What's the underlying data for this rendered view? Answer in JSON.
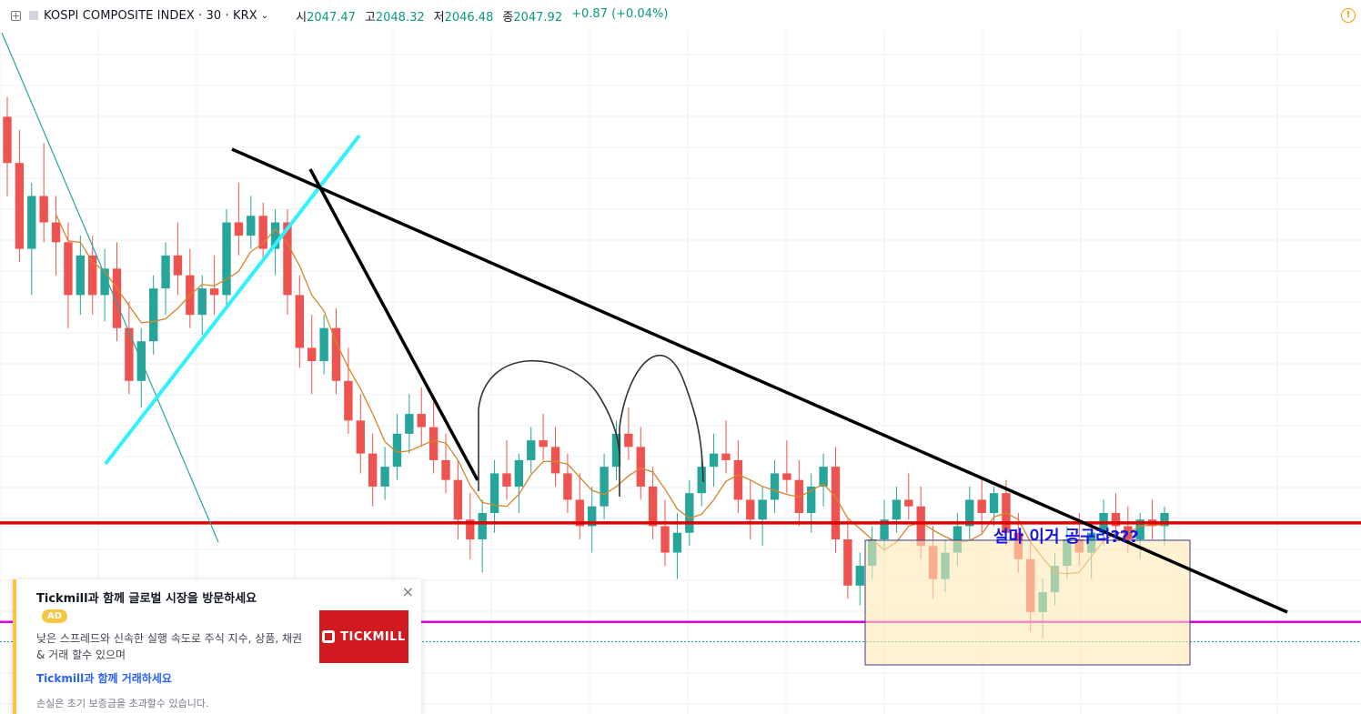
{
  "header": {
    "symbol": "KOSPI COMPOSITE INDEX · 30 · KRX",
    "chevron": "⌄",
    "ohlc": [
      {
        "key": "시",
        "value": "2047.47"
      },
      {
        "key": "고",
        "value": "2048.32"
      },
      {
        "key": "저",
        "value": "2046.48"
      },
      {
        "key": "종",
        "value": "2047.92"
      }
    ],
    "change": "+0.87 (+0.04%)",
    "warning_icon": "warning-icon"
  },
  "annotation": {
    "text": "설마 이거 공구리???"
  },
  "ad": {
    "title": "Tickmill과 함께 글로벌 시장을 방문하세요",
    "badge": "AD",
    "body": "낮은 스프레드와 신속한 실행 속도로 주식 지수, 상품, 채권 & 거래 할수 있으며",
    "link": "Tickmill과 함께 거래하세요",
    "disclaimer": "손실은 초기 보증금을 초과할수 있습니다.",
    "logo_text": "TICKMILL",
    "close": "×",
    "accent_color": "#f7c742",
    "logo_color": "#d11a1f"
  },
  "chart_data": {
    "type": "candlestick",
    "up_color": "#26a69a",
    "down_color": "#ef5350",
    "ma_color": "#d4862b",
    "grid": true,
    "y_range": [
      1995,
      2095
    ],
    "candles": [
      [
        2082,
        2085,
        2070,
        2075
      ],
      [
        2075,
        2080,
        2060,
        2062
      ],
      [
        2062,
        2072,
        2055,
        2070
      ],
      [
        2070,
        2078,
        2063,
        2066
      ],
      [
        2066,
        2070,
        2058,
        2063
      ],
      [
        2063,
        2066,
        2050,
        2055
      ],
      [
        2055,
        2064,
        2052,
        2061
      ],
      [
        2061,
        2064,
        2052,
        2055
      ],
      [
        2055,
        2062,
        2051,
        2059
      ],
      [
        2059,
        2063,
        2048,
        2050
      ],
      [
        2050,
        2054,
        2040,
        2042
      ],
      [
        2042,
        2050,
        2038,
        2048
      ],
      [
        2048,
        2058,
        2046,
        2056
      ],
      [
        2056,
        2063,
        2052,
        2061
      ],
      [
        2061,
        2066,
        2055,
        2058
      ],
      [
        2058,
        2062,
        2050,
        2052
      ],
      [
        2052,
        2058,
        2049,
        2056
      ],
      [
        2056,
        2061,
        2052,
        2055
      ],
      [
        2055,
        2068,
        2053,
        2066
      ],
      [
        2066,
        2072,
        2061,
        2064
      ],
      [
        2064,
        2070,
        2062,
        2067
      ],
      [
        2067,
        2069,
        2060,
        2062
      ],
      [
        2062,
        2068,
        2058,
        2066
      ],
      [
        2066,
        2068,
        2052,
        2055
      ],
      [
        2055,
        2058,
        2044,
        2047
      ],
      [
        2047,
        2052,
        2040,
        2045
      ],
      [
        2045,
        2052,
        2043,
        2050
      ],
      [
        2050,
        2053,
        2040,
        2042
      ],
      [
        2042,
        2047,
        2034,
        2036
      ],
      [
        2036,
        2040,
        2028,
        2031
      ],
      [
        2031,
        2034,
        2023,
        2026
      ],
      [
        2026,
        2032,
        2024,
        2029
      ],
      [
        2029,
        2037,
        2027,
        2034
      ],
      [
        2034,
        2040,
        2031,
        2037
      ],
      [
        2037,
        2041,
        2032,
        2035
      ],
      [
        2035,
        2039,
        2028,
        2030
      ],
      [
        2030,
        2034,
        2025,
        2027
      ],
      [
        2027,
        2030,
        2018,
        2021
      ],
      [
        2021,
        2025,
        2015,
        2018
      ],
      [
        2018,
        2024,
        2013,
        2022
      ],
      [
        2022,
        2030,
        2019,
        2028
      ],
      [
        2028,
        2033,
        2024,
        2026
      ],
      [
        2026,
        2031,
        2022,
        2030
      ],
      [
        2030,
        2035,
        2028,
        2033
      ],
      [
        2033,
        2037,
        2030,
        2032
      ],
      [
        2032,
        2035,
        2026,
        2028
      ],
      [
        2028,
        2031,
        2022,
        2024
      ],
      [
        2024,
        2028,
        2018,
        2020
      ],
      [
        2020,
        2026,
        2016,
        2023
      ],
      [
        2023,
        2031,
        2021,
        2029
      ],
      [
        2029,
        2036,
        2027,
        2034
      ],
      [
        2034,
        2038,
        2030,
        2032
      ],
      [
        2032,
        2035,
        2024,
        2026
      ],
      [
        2026,
        2029,
        2018,
        2020
      ],
      [
        2020,
        2024,
        2014,
        2016
      ],
      [
        2016,
        2022,
        2012,
        2019
      ],
      [
        2019,
        2027,
        2017,
        2025
      ],
      [
        2025,
        2031,
        2023,
        2029
      ],
      [
        2029,
        2034,
        2026,
        2031
      ],
      [
        2031,
        2036,
        2028,
        2030
      ],
      [
        2030,
        2033,
        2022,
        2024
      ],
      [
        2024,
        2027,
        2018,
        2021
      ],
      [
        2021,
        2026,
        2017,
        2024
      ],
      [
        2024,
        2030,
        2022,
        2028
      ],
      [
        2028,
        2033,
        2025,
        2027
      ],
      [
        2027,
        2030,
        2020,
        2022
      ],
      [
        2022,
        2028,
        2019,
        2026
      ],
      [
        2026,
        2031,
        2023,
        2029
      ],
      [
        2029,
        2032,
        2016,
        2018
      ],
      [
        2018,
        2021,
        2009,
        2011
      ],
      [
        2011,
        2016,
        2008,
        2014
      ],
      [
        2014,
        2020,
        2012,
        2018
      ],
      [
        2018,
        2024,
        2016,
        2021
      ],
      [
        2021,
        2026,
        2019,
        2024
      ],
      [
        2024,
        2028,
        2021,
        2023
      ],
      [
        2023,
        2026,
        2015,
        2017
      ],
      [
        2017,
        2020,
        2009,
        2012
      ],
      [
        2012,
        2018,
        2010,
        2016
      ],
      [
        2016,
        2022,
        2014,
        2020
      ],
      [
        2020,
        2026,
        2018,
        2024
      ],
      [
        2024,
        2027,
        2019,
        2022
      ],
      [
        2022,
        2026,
        2020,
        2025
      ],
      [
        2025,
        2027,
        2017,
        2019
      ],
      [
        2019,
        2022,
        2013,
        2015
      ],
      [
        2015,
        2018,
        2004,
        2007
      ],
      [
        2007,
        2012,
        2003,
        2010
      ],
      [
        2010,
        2016,
        2008,
        2014
      ],
      [
        2014,
        2020,
        2012,
        2018
      ],
      [
        2018,
        2022,
        2014,
        2016
      ],
      [
        2016,
        2020,
        2012,
        2019
      ],
      [
        2019,
        2024,
        2017,
        2022
      ],
      [
        2022,
        2025,
        2018,
        2020
      ],
      [
        2020,
        2023,
        2016,
        2018
      ],
      [
        2018,
        2022,
        2015,
        2021
      ],
      [
        2021,
        2024,
        2018,
        2020
      ],
      [
        2020,
        2023,
        2017,
        2022
      ]
    ],
    "hlines": [
      {
        "price": 2020.5,
        "color": "#e00000"
      },
      {
        "price": 2005.5,
        "color": "#e000e0"
      }
    ],
    "dotted_line": {
      "price": 2002.5,
      "color": "#26a69a"
    }
  }
}
